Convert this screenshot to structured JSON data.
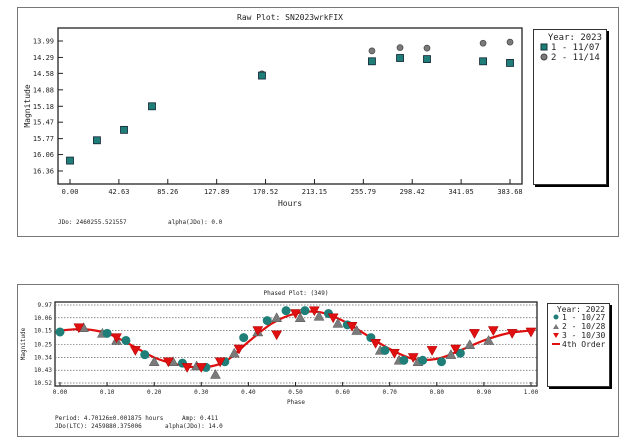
{
  "colors": {
    "teal": "#1f7f78",
    "gray": "#7a7a7a",
    "red": "#e01010"
  },
  "chart_data": [
    {
      "type": "scatter",
      "title": "Raw Plot: SN2023wrkFIX",
      "xlabel": "Hours",
      "ylabel": "Magnitude",
      "xlim": [
        -8,
        392
      ],
      "ylim": [
        13.84,
        16.52
      ],
      "y_inverted": true,
      "x_ticks": [
        "0.00",
        "42.63",
        "85.26",
        "127.89",
        "170.52",
        "213.15",
        "255.79",
        "298.42",
        "341.05",
        "383.68"
      ],
      "y_ticks": [
        "13.99",
        "14.29",
        "14.58",
        "14.88",
        "15.18",
        "15.47",
        "15.77",
        "16.06",
        "16.36"
      ],
      "legend": {
        "title": "Year: 2023",
        "placement": "right"
      },
      "series": [
        {
          "name": "1 - 11/07",
          "marker": "square",
          "x": [
            0,
            23.5,
            47.1,
            71.5,
            167.4,
            263.3,
            287.8,
            311.3,
            360.2,
            383.7
          ],
          "y": [
            16.17,
            15.8,
            15.61,
            15.18,
            14.62,
            14.36,
            14.3,
            14.32,
            14.36,
            14.39
          ]
        },
        {
          "name": "2 - 11/14",
          "marker": "circle",
          "x": [
            167.4,
            263.3,
            287.8,
            311.3,
            360.2,
            383.7
          ],
          "y": [
            14.59,
            14.17,
            14.11,
            14.12,
            14.03,
            14.01
          ]
        }
      ],
      "footer": {
        "jdo": "JDo: 2460255.521557",
        "alpha": "alpha(JDo): 0.0"
      }
    },
    {
      "type": "scatter",
      "title": "Phased Plot: (349)",
      "xlabel": "Phase",
      "ylabel": "Magnitude",
      "xlim": [
        0,
        1
      ],
      "ylim": [
        9.97,
        10.52
      ],
      "y_inverted": true,
      "grid": true,
      "x_ticks": [
        "0.00",
        "0.10",
        "0.20",
        "0.30",
        "0.40",
        "0.50",
        "0.60",
        "0.70",
        "0.80",
        "0.90",
        "1.00"
      ],
      "y_ticks": [
        "9.97",
        "10.06",
        "10.15",
        "10.25",
        "10.34",
        "10.43",
        "10.52"
      ],
      "legend": {
        "title": "Year: 2022",
        "placement": "right"
      },
      "series": [
        {
          "name": "1 - 10/27",
          "marker": "circle",
          "x": [
            0.0,
            0.1,
            0.14,
            0.18,
            0.26,
            0.31,
            0.35,
            0.39,
            0.44,
            0.48,
            0.52,
            0.57,
            0.61,
            0.66,
            0.69,
            0.73,
            0.77,
            0.81,
            0.85
          ],
          "y": [
            10.16,
            10.17,
            10.22,
            10.32,
            10.38,
            10.41,
            10.37,
            10.2,
            10.08,
            10.01,
            10.01,
            10.03,
            10.11,
            10.2,
            10.29,
            10.36,
            10.36,
            10.37,
            10.31
          ]
        },
        {
          "name": "2 - 10/28",
          "marker": "triangle-up",
          "x": [
            0.05,
            0.09,
            0.12,
            0.2,
            0.24,
            0.29,
            0.33,
            0.37,
            0.42,
            0.46,
            0.51,
            0.55,
            0.59,
            0.63,
            0.68,
            0.72,
            0.76,
            0.83,
            0.87,
            0.91
          ],
          "y": [
            10.13,
            10.17,
            10.22,
            10.37,
            10.37,
            10.4,
            10.46,
            10.31,
            10.16,
            10.06,
            10.06,
            10.05,
            10.1,
            10.15,
            10.29,
            10.36,
            10.37,
            10.32,
            10.25,
            10.22
          ]
        },
        {
          "name": "3 - 10/30",
          "marker": "triangle-down",
          "x": [
            0.04,
            0.12,
            0.16,
            0.23,
            0.27,
            0.3,
            0.34,
            0.38,
            0.42,
            0.46,
            0.5,
            0.54,
            0.58,
            0.62,
            0.67,
            0.71,
            0.75,
            0.79,
            0.84,
            0.88,
            0.92,
            0.96,
            1.0
          ],
          "y": [
            10.13,
            10.2,
            10.29,
            10.37,
            10.41,
            10.41,
            10.37,
            10.28,
            10.15,
            10.18,
            10.03,
            10.01,
            10.06,
            10.12,
            10.24,
            10.31,
            10.34,
            10.29,
            10.28,
            10.17,
            10.15,
            10.17,
            10.16
          ]
        },
        {
          "name": "4th Order",
          "marker": "line",
          "x": [
            0,
            0.05,
            0.1,
            0.15,
            0.2,
            0.25,
            0.3,
            0.35,
            0.4,
            0.45,
            0.5,
            0.55,
            0.6,
            0.65,
            0.7,
            0.75,
            0.8,
            0.85,
            0.9,
            0.95,
            1.0
          ],
          "y": [
            10.15,
            10.14,
            10.17,
            10.25,
            10.34,
            10.39,
            10.41,
            10.37,
            10.23,
            10.1,
            10.03,
            10.02,
            10.08,
            10.18,
            10.28,
            10.35,
            10.35,
            10.29,
            10.22,
            10.17,
            10.15
          ]
        }
      ],
      "footer": {
        "period": "Period: 4.70126±0.001875 hours",
        "amp": "Amp: 0.411",
        "jdo": "JDo(LTC): 2459880.375006",
        "alpha": "alpha(JDo): 14.0"
      }
    }
  ]
}
